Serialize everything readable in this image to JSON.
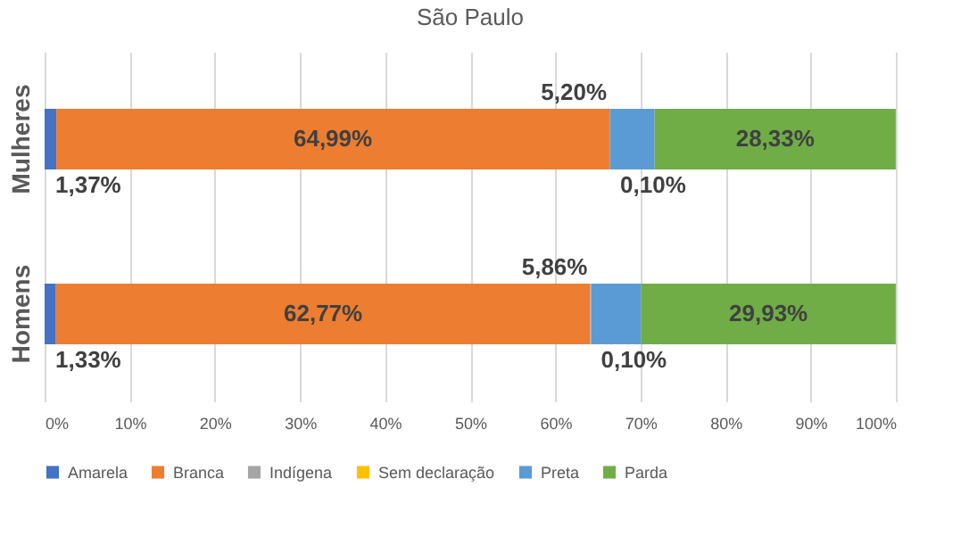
{
  "chart_data": {
    "type": "bar",
    "title": "São Paulo",
    "orientation": "horizontal",
    "stacked": true,
    "categories": [
      "Mulheres",
      "Homens"
    ],
    "series": [
      {
        "name": "Amarela",
        "color": "#4472c4",
        "values": [
          1.37,
          1.33
        ],
        "value_labels": [
          "1,37%",
          "1,33%"
        ]
      },
      {
        "name": "Branca",
        "color": "#ed7d31",
        "values": [
          64.99,
          62.77
        ],
        "value_labels": [
          "64,99%",
          "62,77%"
        ]
      },
      {
        "name": "Indígena",
        "color": "#a5a5a5",
        "values": [
          0.1,
          0.1
        ],
        "value_labels": [
          "0,10%",
          "0,10%"
        ]
      },
      {
        "name": "Sem declaração",
        "color": "#ffc000",
        "values": [
          null,
          null
        ],
        "value_labels": [
          null,
          null
        ]
      },
      {
        "name": "Preta",
        "color": "#5b9bd5",
        "values": [
          5.2,
          5.86
        ],
        "value_labels": [
          "5,20%",
          "5,86%"
        ]
      },
      {
        "name": "Parda",
        "color": "#70ad47",
        "values": [
          28.33,
          29.93
        ],
        "value_labels": [
          "28,33%",
          "29,93%"
        ]
      }
    ],
    "xlim": [
      0,
      100
    ],
    "xticks": [
      {
        "value": 0,
        "label": "0%"
      },
      {
        "value": 10,
        "label": "10%"
      },
      {
        "value": 20,
        "label": "20%"
      },
      {
        "value": 30,
        "label": "30%"
      },
      {
        "value": 40,
        "label": "40%"
      },
      {
        "value": 50,
        "label": "50%"
      },
      {
        "value": 60,
        "label": "60%"
      },
      {
        "value": 70,
        "label": "70%"
      },
      {
        "value": 80,
        "label": "80%"
      },
      {
        "value": 90,
        "label": "90%"
      },
      {
        "value": 100,
        "label": "100%"
      }
    ],
    "grid": "x",
    "legend": "bottom"
  }
}
